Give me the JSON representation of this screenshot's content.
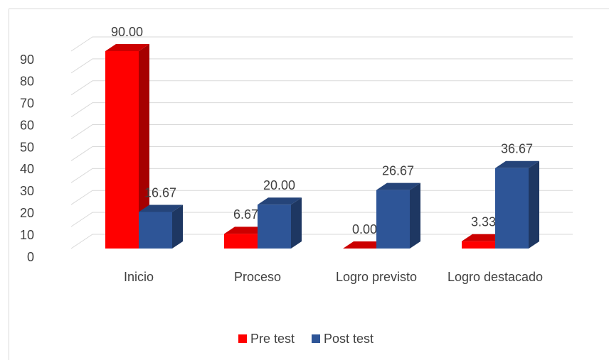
{
  "chart_data": {
    "type": "bar3d",
    "categories": [
      "Inicio",
      "Proceso",
      "Logro previsto",
      "Logro destacado"
    ],
    "series": [
      {
        "name": "Pre test",
        "color": "#ff0000",
        "values": [
          90.0,
          6.67,
          0.0,
          3.33
        ],
        "value_labels": [
          "90.00",
          "6.67",
          "0.00",
          "3.33"
        ]
      },
      {
        "name": "Post test",
        "color": "#2e5597",
        "values": [
          16.67,
          20.0,
          26.67,
          36.67
        ],
        "value_labels": [
          "16.67",
          "20.00",
          "26.67",
          "36.67"
        ]
      }
    ],
    "ylim": [
      0,
      90
    ],
    "yticks": [
      0,
      10,
      20,
      30,
      40,
      50,
      60,
      70,
      80,
      90
    ],
    "grid": true,
    "legend": "bottom"
  }
}
